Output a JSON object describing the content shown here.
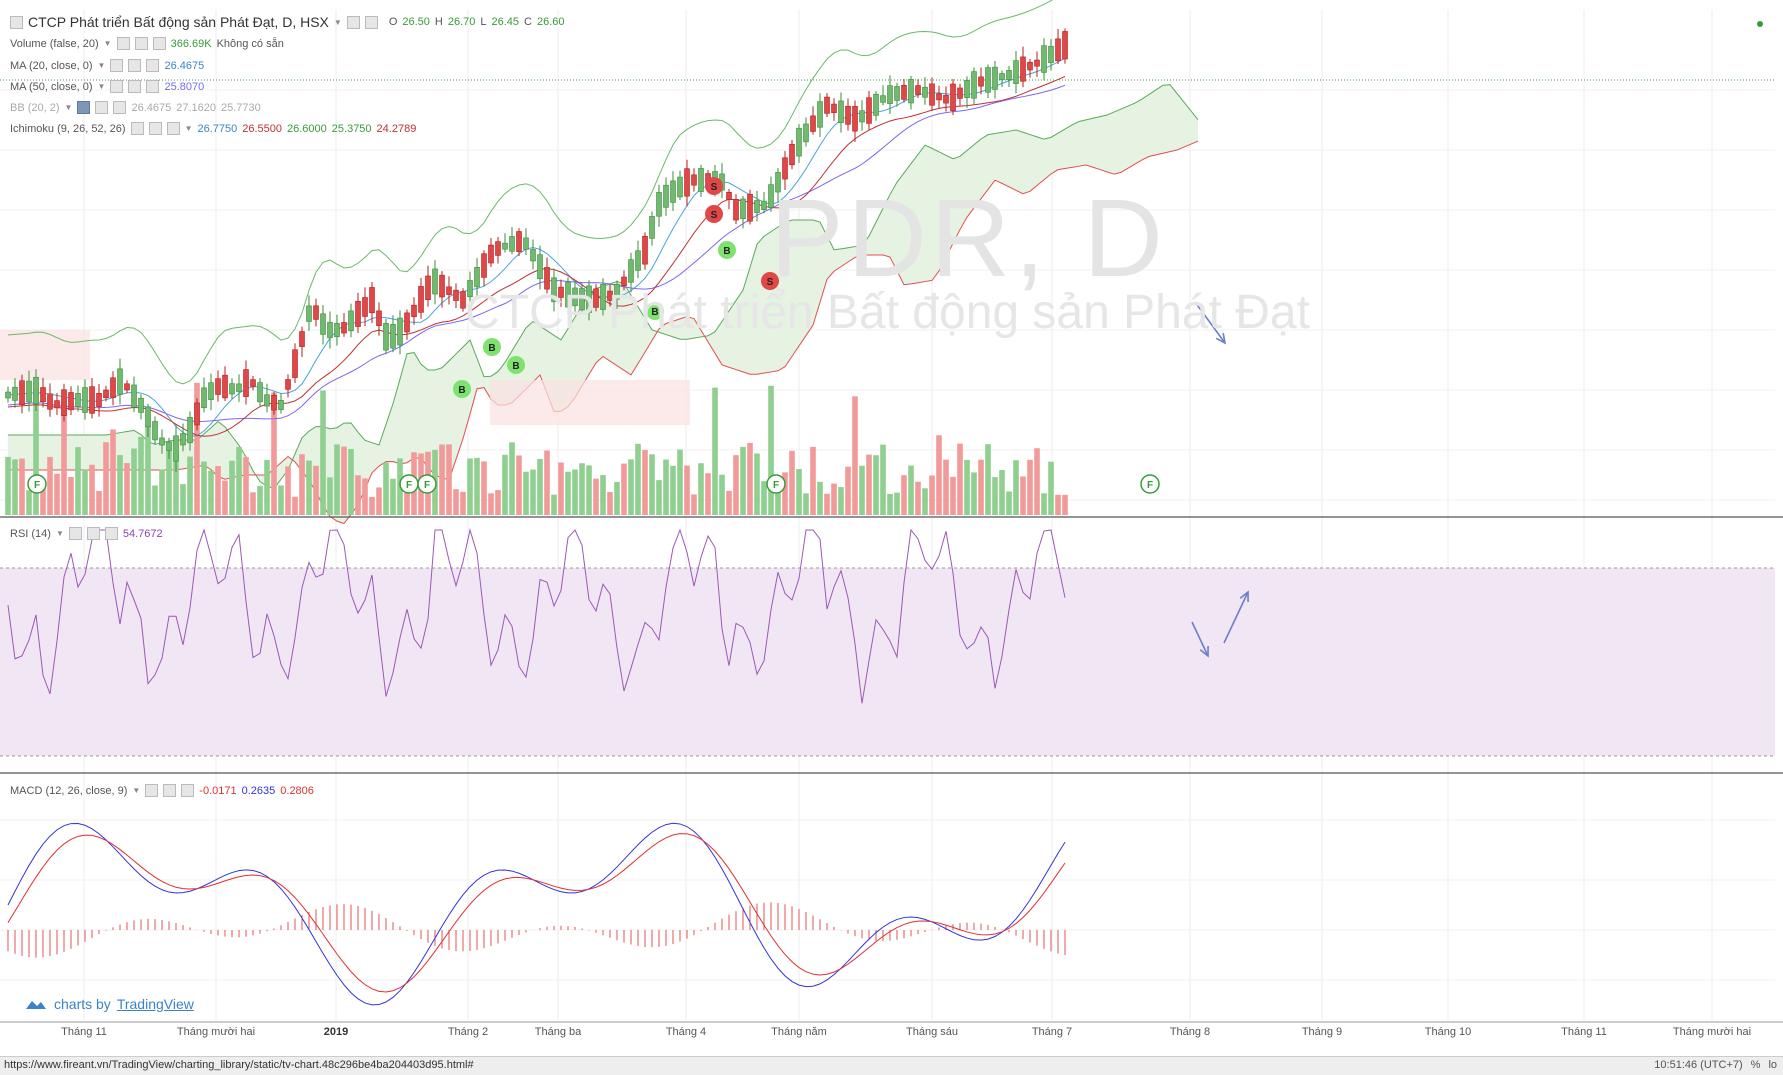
{
  "header": {
    "title": "CTCP Phát triển Bất động sản Phát Đạt, D, HSX",
    "ohlc": {
      "o_label": "O",
      "o": "26.50",
      "h_label": "H",
      "h": "26.70",
      "l_label": "L",
      "l": "26.45",
      "c_label": "C",
      "c": "26.60"
    }
  },
  "indicators": {
    "volume": {
      "label": "Volume (false, 20)",
      "value": "366.69K",
      "note": "Không có sẵn"
    },
    "ma20": {
      "label": "MA (20, close, 0)",
      "value": "26.4675"
    },
    "ma50": {
      "label": "MA (50, close, 0)",
      "value": "25.8070"
    },
    "bb": {
      "label": "BB (20, 2)",
      "values": [
        "26.4675",
        "27.1620",
        "25.7730"
      ]
    },
    "ichimoku": {
      "label": "Ichimoku (9, 26, 52, 26)",
      "values": [
        "26.7750",
        "26.5500",
        "26.6000",
        "25.3750",
        "24.2789"
      ]
    },
    "rsi": {
      "label": "RSI (14)",
      "value": "54.7672"
    },
    "macd": {
      "label": "MACD (12, 26, close, 9)",
      "values": [
        "-0.0171",
        "0.2635",
        "0.2806"
      ]
    }
  },
  "watermark": {
    "symbol": "PDR, D",
    "company": "CTCP Phát triển Bất động sản Phát Đạt"
  },
  "signals": {
    "buy": "B",
    "sell": "S",
    "financial": "F"
  },
  "axis": {
    "months": [
      "Tháng 11",
      "Tháng mười hai",
      "2019",
      "Tháng 2",
      "Tháng ba",
      "Tháng 4",
      "Tháng năm",
      "Tháng sáu",
      "Tháng 7",
      "Tháng 8",
      "Tháng 9",
      "Tháng 10",
      "Tháng 11",
      "Tháng mười hai"
    ]
  },
  "branding": {
    "prefix": "charts by",
    "name": "TradingView"
  },
  "statusbar": {
    "url": "https://www.fireant.vn/TradingView/charting_library/static/tv-chart.48c296be4ba204403d95.html#",
    "time": "10:51:46 (UTC+7)",
    "pct": "%",
    "log": "lo"
  },
  "colors": {
    "up": "#6fba6f",
    "down": "#e04848",
    "ma20": "#4aa3df",
    "ma50": "#7b68ee",
    "rsi": "#9b59b6",
    "macd": "#3333dd",
    "signal": "#e03030",
    "cloudUp": "#e3f1df",
    "cloudDown": "#fbe1e3"
  }
}
